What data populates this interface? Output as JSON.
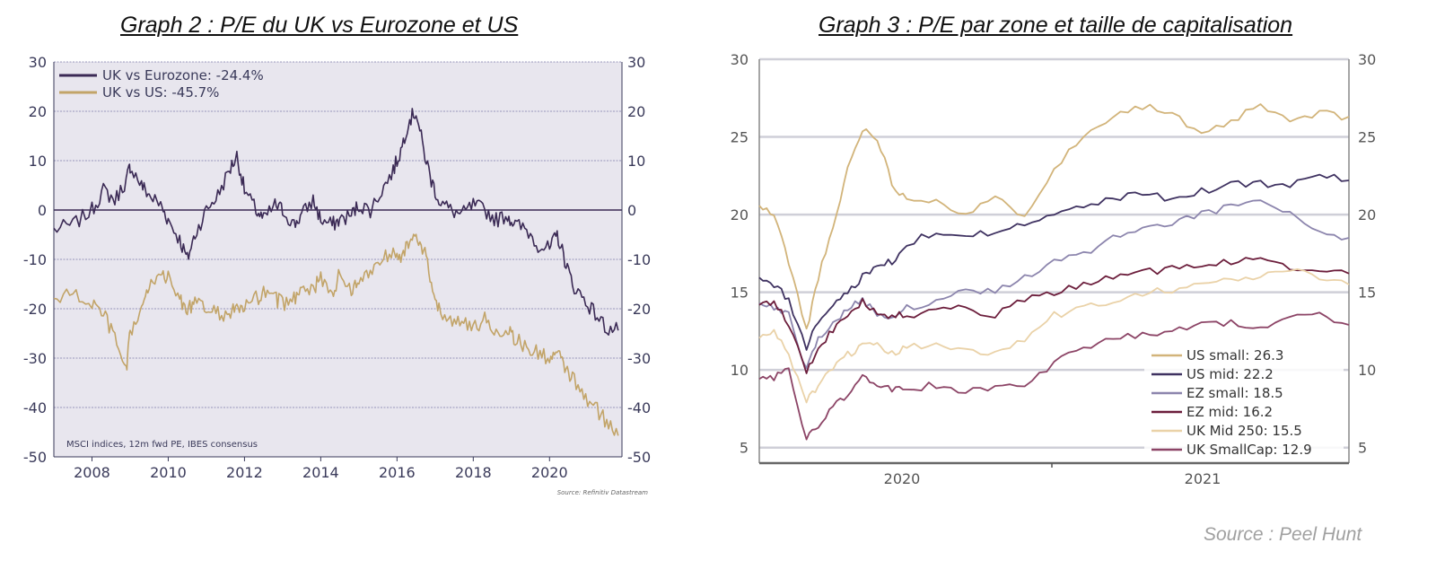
{
  "titles": {
    "left": "Graph 2 : P/E du UK vs Eurozone et US",
    "right": "Graph 3 : P/E par zone et taille de capitalisation"
  },
  "source_main": "Source : Peel Hunt",
  "colors": {
    "panel_bg": "#e8e6ee",
    "uk_vs_eurozone": "#3b2a55",
    "uk_vs_us": "#c2a468",
    "us_small": "#d2b47a",
    "us_mid": "#3f3261",
    "ez_small": "#8c85ad",
    "ez_mid": "#6c1e3c",
    "uk_mid_250": "#ead2a8",
    "uk_smallcap": "#8c4466"
  },
  "chart_data": [
    {
      "type": "line",
      "title": "Graph 2 : P/E du UK vs Eurozone et US",
      "note": "MSCI indices, 12m fwd PE, IBES consensus",
      "source": "Source: Refinitiv Datastream",
      "x_ticks": [
        "2008",
        "2010",
        "2012",
        "2014",
        "2016",
        "2018",
        "2020"
      ],
      "y_ticks": [
        "30",
        "20",
        "10",
        "0",
        "-10",
        "-20",
        "-30",
        "-40",
        "-50"
      ],
      "xlim": [
        2007.0,
        2021.9
      ],
      "ylim": [
        -50,
        30
      ],
      "grid": true,
      "legend_position": "top-left",
      "x": [
        2007.0,
        2007.5,
        2008.0,
        2008.3,
        2008.6,
        2008.9,
        2009.0,
        2009.3,
        2009.5,
        2009.8,
        2010.0,
        2010.3,
        2010.5,
        2010.7,
        2011.0,
        2011.3,
        2011.6,
        2011.8,
        2012.0,
        2012.3,
        2012.5,
        2012.8,
        2013.0,
        2013.3,
        2013.5,
        2013.8,
        2014.0,
        2014.3,
        2014.5,
        2014.8,
        2015.0,
        2015.3,
        2015.6,
        2015.9,
        2016.1,
        2016.3,
        2016.5,
        2016.7,
        2016.9,
        2017.1,
        2017.4,
        2017.7,
        2018.0,
        2018.3,
        2018.6,
        2018.9,
        2019.1,
        2019.4,
        2019.7,
        2020.0,
        2020.2,
        2020.4,
        2020.6,
        2020.9,
        2021.2,
        2021.5,
        2021.8
      ],
      "series": [
        {
          "name": "UK vs Eurozone: -24.4%",
          "values": [
            -4,
            -3,
            0,
            4,
            2,
            6,
            9,
            5,
            3,
            1,
            -2,
            -6,
            -10,
            -5,
            0,
            3,
            8,
            11,
            4,
            0,
            -2,
            1,
            0,
            -3,
            -1,
            2,
            -2,
            -3,
            -2,
            -1,
            1,
            0,
            4,
            8,
            12,
            18,
            20,
            12,
            6,
            2,
            0,
            -1,
            1,
            0,
            -2,
            -1,
            -3,
            -4,
            -7,
            -8,
            -5,
            -10,
            -15,
            -18,
            -21,
            -24,
            -24.4
          ]
        },
        {
          "name": "UK vs US: -45.7%",
          "values": [
            -18,
            -17,
            -19,
            -21,
            -26,
            -33,
            -25,
            -20,
            -16,
            -12,
            -14,
            -18,
            -20,
            -19,
            -20,
            -21,
            -21,
            -20,
            -20,
            -18,
            -17,
            -18,
            -19,
            -18,
            -15,
            -16,
            -14,
            -17,
            -13,
            -16,
            -15,
            -12,
            -10,
            -8,
            -9,
            -7,
            -6,
            -8,
            -15,
            -20,
            -22,
            -23,
            -24,
            -22,
            -25,
            -24,
            -26,
            -28,
            -29,
            -30,
            -29,
            -32,
            -34,
            -38,
            -40,
            -43,
            -45.7
          ]
        }
      ]
    },
    {
      "type": "line",
      "title": "Graph 3 : P/E par zone et taille de capitalisation",
      "x_ticks": [
        "2020",
        "2021"
      ],
      "y_ticks": [
        "30",
        "25",
        "20",
        "15",
        "10",
        "5"
      ],
      "xlim": [
        2019.5,
        2021.5
      ],
      "ylim": [
        4,
        30
      ],
      "grid": true,
      "legend_position": "bottom-right",
      "x": [
        2019.5,
        2019.55,
        2019.6,
        2019.66,
        2019.7,
        2019.75,
        2019.8,
        2019.85,
        2019.9,
        2019.95,
        2020.0,
        2020.1,
        2020.2,
        2020.3,
        2020.4,
        2020.5,
        2020.6,
        2020.7,
        2020.8,
        2020.9,
        2021.0,
        2021.1,
        2021.2,
        2021.3,
        2021.4,
        2021.5
      ],
      "series": [
        {
          "name": "US small: 26.3",
          "values": [
            20.5,
            20,
            17,
            12.5,
            16,
            19,
            23,
            25.5,
            25,
            22,
            21,
            21,
            20,
            21,
            20,
            23,
            25,
            26.5,
            27,
            26.5,
            25,
            26,
            27,
            26,
            26.5,
            26.3
          ]
        },
        {
          "name": "US mid: 22.2",
          "values": [
            16,
            15.5,
            14.5,
            11.5,
            13,
            14,
            15,
            16,
            16.5,
            17,
            18,
            19,
            18.5,
            19,
            19.5,
            20,
            20.5,
            21,
            21.3,
            21,
            21.5,
            22,
            22,
            22,
            22.5,
            22.2
          ]
        },
        {
          "name": "EZ small: 18.5",
          "values": [
            14.5,
            14,
            13.5,
            10,
            12,
            13,
            14,
            14.5,
            13.5,
            13.5,
            14,
            14.5,
            15,
            15,
            16,
            17,
            17.5,
            18.5,
            19,
            19.5,
            20,
            20.5,
            21,
            20,
            19,
            18.5
          ]
        },
        {
          "name": "EZ mid: 16.2",
          "values": [
            14,
            14.5,
            13,
            9.8,
            11.5,
            12.5,
            13.5,
            14.5,
            13.5,
            13.5,
            13.5,
            13.7,
            14,
            13.5,
            14.5,
            15,
            15.5,
            16,
            16.3,
            16.5,
            16.7,
            17,
            17,
            16.5,
            16.5,
            16.2
          ]
        },
        {
          "name": "UK Mid 250: 15.5",
          "values": [
            12,
            12.5,
            11,
            8,
            9,
            10,
            11,
            11.5,
            11.5,
            11,
            11.5,
            11.5,
            11.5,
            11,
            12,
            13.5,
            14,
            14.5,
            15,
            15.2,
            15.5,
            15.8,
            16,
            16.5,
            15.8,
            15.5
          ]
        },
        {
          "name": "UK SmallCap: 12.9",
          "values": [
            9.5,
            9.5,
            10,
            5.5,
            6.5,
            7.5,
            8.5,
            9.5,
            8.8,
            8.8,
            8.8,
            9,
            8.5,
            9,
            8.8,
            10.5,
            11.5,
            12,
            12.3,
            12.5,
            13,
            13,
            12.5,
            13.5,
            13.5,
            12.9
          ]
        }
      ]
    }
  ]
}
